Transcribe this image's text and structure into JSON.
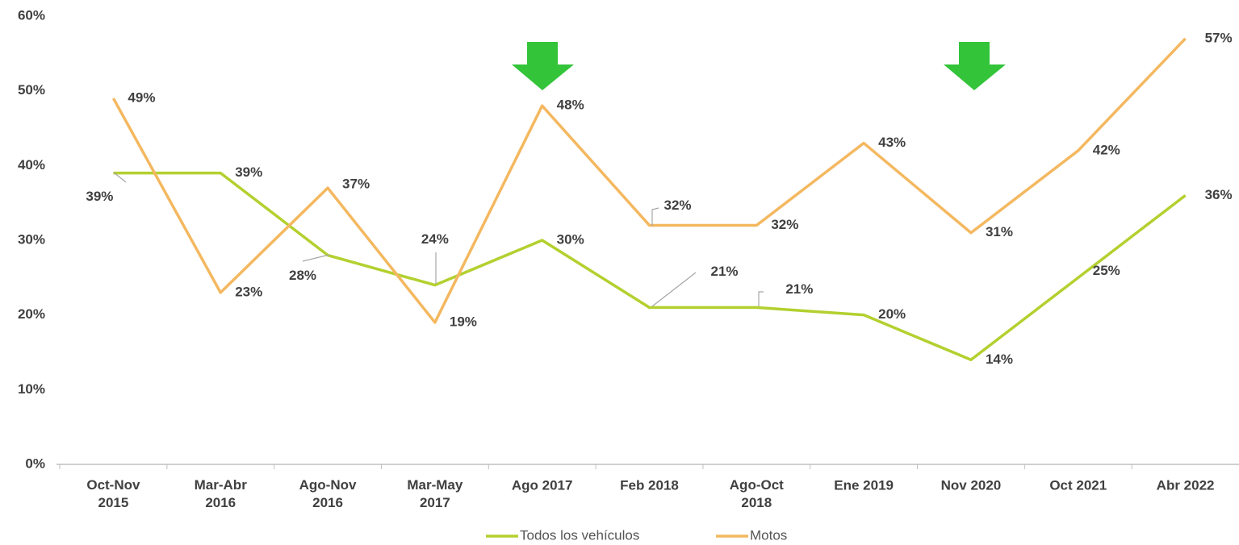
{
  "chart_data": {
    "type": "line",
    "categories": [
      "Oct-Nov 2015",
      "Mar-Abr 2016",
      "Ago-Nov 2016",
      "Mar-May 2017",
      "Ago 2017",
      "Feb 2018",
      "Ago-Oct 2018",
      "Ene 2019",
      "Nov 2020",
      "Oct 2021",
      "Abr 2022"
    ],
    "series": [
      {
        "name": "Todos los vehículos",
        "color": "#b3d02f",
        "values": [
          39,
          39,
          28,
          24,
          30,
          21,
          21,
          20,
          14,
          25,
          36
        ],
        "value_labels": [
          "39%",
          "39%",
          "28%",
          "24%",
          "30%",
          "21%",
          "21%",
          "20%",
          "14%",
          "25%",
          "36%"
        ]
      },
      {
        "name": "Motos",
        "color": "#f4b860",
        "values": [
          49,
          23,
          37,
          19,
          48,
          32,
          32,
          43,
          31,
          42,
          57
        ],
        "value_labels": [
          "49%",
          "23%",
          "37%",
          "19%",
          "48%",
          "32%",
          "32%",
          "43%",
          "31%",
          "42%",
          "57%"
        ]
      }
    ],
    "ylim": [
      0,
      60
    ],
    "yticks": [
      {
        "value": 0,
        "label": "0%"
      },
      {
        "value": 10,
        "label": "10%"
      },
      {
        "value": 20,
        "label": "20%"
      },
      {
        "value": 30,
        "label": "30%"
      },
      {
        "value": 40,
        "label": "40%"
      },
      {
        "value": 50,
        "label": "50%"
      },
      {
        "value": 60,
        "label": "60%"
      }
    ],
    "legend": "bottom"
  }
}
